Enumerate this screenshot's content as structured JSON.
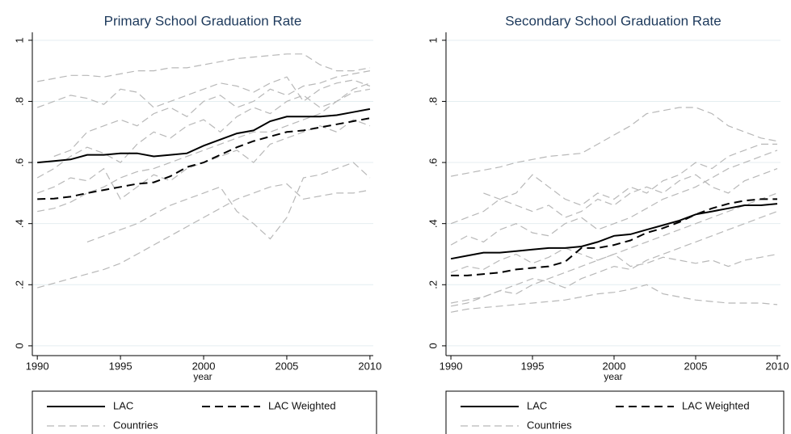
{
  "chart_data": [
    {
      "type": "line",
      "title": "Primary School Graduation Rate",
      "x_label": "year",
      "x": [
        1990,
        1991,
        1992,
        1993,
        1994,
        1995,
        1996,
        1997,
        1998,
        1999,
        2000,
        2001,
        2002,
        2003,
        2004,
        2005,
        2006,
        2007,
        2008,
        2009,
        2010
      ],
      "xlim": [
        1989.7,
        2010.2
      ],
      "xticks": [
        1990,
        1995,
        2000,
        2005,
        2010
      ],
      "ylim": [
        -0.032,
        1.026
      ],
      "yticks": [
        0,
        {
          "value": 0.2,
          "label": ".2"
        },
        {
          "value": 0.4,
          "label": ".4"
        },
        {
          "value": 0.6,
          "label": ".6"
        },
        {
          "value": 0.8,
          "label": ".8"
        },
        1
      ],
      "grid": true,
      "series": [
        {
          "name": "LAC",
          "color": "#000000",
          "style": "solid",
          "values": [
            0.6,
            0.605,
            0.61,
            0.625,
            0.625,
            0.63,
            0.63,
            0.62,
            0.625,
            0.63,
            0.655,
            0.675,
            0.695,
            0.705,
            0.735,
            0.75,
            0.75,
            0.75,
            0.755,
            0.765,
            0.775
          ]
        },
        {
          "name": "LAC Weighted",
          "color": "#000000",
          "style": "dashed",
          "values": [
            0.48,
            0.482,
            0.488,
            0.5,
            0.51,
            0.52,
            0.53,
            0.535,
            0.555,
            0.585,
            0.6,
            0.625,
            0.65,
            0.67,
            0.685,
            0.7,
            0.705,
            0.715,
            0.725,
            0.735,
            0.745
          ]
        },
        {
          "name": "Countries",
          "color": "#b8b8b8",
          "style": "dashed",
          "lines": [
            [
              0.865,
              0.875,
              0.885,
              0.885,
              0.88,
              0.89,
              0.9,
              0.9,
              0.91,
              0.91,
              0.92,
              0.93,
              0.94,
              0.945,
              0.95,
              0.955,
              0.955,
              0.92,
              0.9,
              0.9,
              0.91
            ],
            [
              0.19,
              0.205,
              0.22,
              0.235,
              0.25,
              0.27,
              0.3,
              0.33,
              0.36,
              0.39,
              0.42,
              0.45,
              0.48,
              0.5,
              0.52,
              0.53,
              0.48,
              0.49,
              0.5,
              0.5,
              0.51
            ],
            [
              null,
              null,
              null,
              0.34,
              0.36,
              0.38,
              0.4,
              0.43,
              0.46,
              0.48,
              0.5,
              0.52,
              0.44,
              0.4,
              0.35,
              0.42,
              0.55,
              0.56,
              0.58,
              0.6,
              0.55
            ],
            [
              0.44,
              0.45,
              0.47,
              0.5,
              0.52,
              0.55,
              0.57,
              0.58,
              0.6,
              0.62,
              0.64,
              0.66,
              0.68,
              0.7,
              0.7,
              0.72,
              0.74,
              0.76,
              0.8,
              0.84,
              0.86
            ],
            [
              0.78,
              0.8,
              0.82,
              0.81,
              0.79,
              0.84,
              0.83,
              0.78,
              0.8,
              0.82,
              0.84,
              0.86,
              0.85,
              0.83,
              0.86,
              0.88,
              0.8,
              0.84,
              0.86,
              0.87,
              0.85
            ],
            [
              0.55,
              0.58,
              0.62,
              0.65,
              0.63,
              0.6,
              0.66,
              0.7,
              0.68,
              0.72,
              0.74,
              0.7,
              0.75,
              0.78,
              0.76,
              0.8,
              0.82,
              0.78,
              0.8,
              0.83,
              0.84
            ],
            [
              null,
              0.62,
              0.64,
              0.7,
              0.72,
              0.74,
              0.72,
              0.76,
              0.78,
              0.75,
              0.8,
              0.82,
              0.78,
              0.8,
              0.84,
              0.82,
              0.85,
              0.86,
              0.88,
              0.89,
              0.9
            ],
            [
              0.5,
              0.52,
              0.55,
              0.54,
              0.58,
              0.48,
              0.52,
              0.56,
              0.54,
              0.58,
              0.6,
              0.62,
              0.64,
              0.6,
              0.66,
              0.68,
              0.7,
              0.72,
              0.7,
              0.74,
              0.72
            ]
          ]
        }
      ],
      "legend": "bottom"
    },
    {
      "type": "line",
      "title": "Secondary School Graduation Rate",
      "x_label": "year",
      "x": [
        1990,
        1991,
        1992,
        1993,
        1994,
        1995,
        1996,
        1997,
        1998,
        1999,
        2000,
        2001,
        2002,
        2003,
        2004,
        2005,
        2006,
        2007,
        2008,
        2009,
        2010
      ],
      "xlim": [
        1989.7,
        2010.2
      ],
      "xticks": [
        1990,
        1995,
        2000,
        2005,
        2010
      ],
      "ylim": [
        -0.032,
        1.026
      ],
      "yticks": [
        0,
        {
          "value": 0.2,
          "label": ".2"
        },
        {
          "value": 0.4,
          "label": ".4"
        },
        {
          "value": 0.6,
          "label": ".6"
        },
        {
          "value": 0.8,
          "label": ".8"
        },
        1
      ],
      "grid": true,
      "series": [
        {
          "name": "LAC",
          "color": "#000000",
          "style": "solid",
          "values": [
            0.285,
            0.295,
            0.305,
            0.305,
            0.31,
            0.315,
            0.32,
            0.32,
            0.325,
            0.34,
            0.36,
            0.365,
            0.38,
            0.395,
            0.41,
            0.43,
            0.44,
            0.45,
            0.46,
            0.46,
            0.465
          ]
        },
        {
          "name": "LAC Weighted",
          "color": "#000000",
          "style": "dashed",
          "values": [
            0.23,
            0.23,
            0.235,
            0.24,
            0.25,
            0.255,
            0.26,
            0.275,
            0.32,
            0.32,
            0.33,
            0.345,
            0.37,
            0.385,
            0.405,
            0.43,
            0.45,
            0.465,
            0.475,
            0.48,
            0.48
          ]
        },
        {
          "name": "Countries",
          "color": "#b8b8b8",
          "style": "dashed",
          "lines": [
            [
              0.555,
              0.565,
              0.575,
              0.585,
              0.6,
              0.61,
              0.62,
              0.625,
              0.63,
              0.66,
              0.69,
              0.72,
              0.76,
              0.77,
              0.78,
              0.78,
              0.76,
              0.72,
              0.7,
              0.68,
              0.67
            ],
            [
              0.11,
              0.12,
              0.125,
              0.13,
              0.135,
              0.14,
              0.145,
              0.15,
              0.16,
              0.17,
              0.175,
              0.185,
              0.2,
              0.17,
              0.16,
              0.15,
              0.145,
              0.14,
              0.14,
              0.14,
              0.135
            ],
            [
              0.4,
              0.42,
              0.44,
              0.48,
              0.5,
              0.56,
              0.52,
              0.48,
              0.46,
              0.5,
              0.48,
              0.52,
              0.5,
              0.54,
              0.56,
              0.6,
              0.58,
              0.62,
              0.64,
              0.66,
              0.66
            ],
            [
              0.13,
              0.14,
              0.16,
              0.18,
              0.17,
              0.2,
              0.22,
              0.24,
              0.26,
              0.28,
              0.3,
              0.32,
              0.34,
              0.36,
              0.38,
              0.4,
              0.42,
              0.44,
              0.46,
              0.48,
              0.5
            ],
            [
              0.33,
              0.36,
              0.34,
              0.38,
              0.4,
              0.37,
              0.36,
              0.4,
              0.42,
              0.38,
              0.4,
              0.42,
              0.45,
              0.48,
              0.5,
              0.52,
              0.55,
              0.58,
              0.6,
              0.62,
              0.64
            ],
            [
              0.24,
              0.26,
              0.25,
              0.28,
              0.3,
              0.27,
              0.29,
              0.32,
              0.3,
              0.28,
              0.3,
              0.26,
              0.27,
              0.29,
              0.28,
              0.27,
              0.28,
              0.26,
              0.28,
              0.29,
              0.3
            ],
            [
              null,
              null,
              0.5,
              0.48,
              0.46,
              0.44,
              0.46,
              0.42,
              0.44,
              0.48,
              0.46,
              0.5,
              0.52,
              0.5,
              0.54,
              0.56,
              0.52,
              0.5,
              0.54,
              0.56,
              0.58
            ],
            [
              0.14,
              0.15,
              0.16,
              0.18,
              0.2,
              0.22,
              0.21,
              0.19,
              0.22,
              0.24,
              0.26,
              0.25,
              0.28,
              0.3,
              0.32,
              0.34,
              0.36,
              0.38,
              0.4,
              0.42,
              0.44
            ]
          ]
        }
      ],
      "legend": "bottom"
    }
  ]
}
